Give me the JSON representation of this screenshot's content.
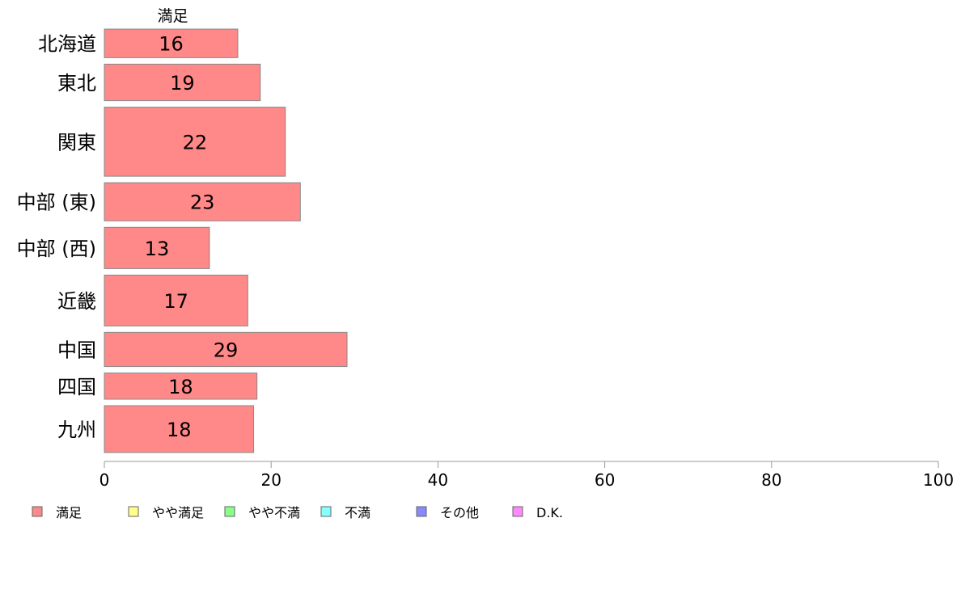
{
  "chart_data": {
    "type": "bar",
    "orientation": "horizontal",
    "stacked": true,
    "categories": [
      "北海道",
      "東北",
      "関東",
      "中部 (東)",
      "中部 (西)",
      "近畿",
      "中国",
      "四国",
      "九州"
    ],
    "category_weights": [
      36,
      46,
      87,
      48,
      52,
      64,
      43,
      33,
      59
    ],
    "series": [
      {
        "name": "満足",
        "color": "#ff8888",
        "values": [
          16,
          18.7,
          21.7,
          23.5,
          12.6,
          17.2,
          29.1,
          18.3,
          17.9
        ],
        "labels": [
          "16",
          "19",
          "22",
          "23",
          "13",
          "17",
          "29",
          "18",
          "18"
        ]
      },
      {
        "name": "やや満足",
        "color": "#ffff88",
        "values": [
          0,
          0,
          0,
          0,
          0,
          0,
          0,
          0,
          0
        ],
        "labels": [
          "",
          "",
          "",
          "",
          "",
          "",
          "",
          "",
          ""
        ]
      },
      {
        "name": "やや不満",
        "color": "#88ff88",
        "values": [
          0,
          0,
          0,
          0,
          0,
          0,
          0,
          0,
          0
        ],
        "labels": [
          "",
          "",
          "",
          "",
          "",
          "",
          "",
          "",
          ""
        ]
      },
      {
        "name": "不満",
        "color": "#88ffff",
        "values": [
          0,
          0,
          0,
          0,
          0,
          0,
          0,
          0,
          0
        ],
        "labels": [
          "",
          "",
          "",
          "",
          "",
          "",
          "",
          "",
          ""
        ]
      },
      {
        "name": "その他",
        "color": "#8888ff",
        "values": [
          0,
          0,
          0,
          0,
          0,
          0,
          0,
          0,
          0
        ],
        "labels": [
          "",
          "",
          "",
          "",
          "",
          "",
          "",
          "",
          ""
        ]
      },
      {
        "name": "D.K.",
        "color": "#ff88ff",
        "values": [
          0,
          0,
          0,
          0,
          0,
          0,
          0,
          0,
          0
        ],
        "labels": [
          "",
          "",
          "",
          "",
          "",
          "",
          "",
          "",
          ""
        ]
      }
    ],
    "top_label": "満足",
    "xlim": [
      0,
      100
    ],
    "xticks": [
      0,
      20,
      40,
      60,
      80,
      100
    ],
    "xtick_labels": [
      "0",
      "20",
      "40",
      "60",
      "80",
      "100"
    ],
    "title": "",
    "xlabel": "",
    "ylabel": "",
    "grid": false,
    "legend": {
      "position": "bottom-left",
      "items": [
        "満足",
        "やや満足",
        "やや不満",
        "不満",
        "その他",
        "D.K."
      ]
    }
  }
}
